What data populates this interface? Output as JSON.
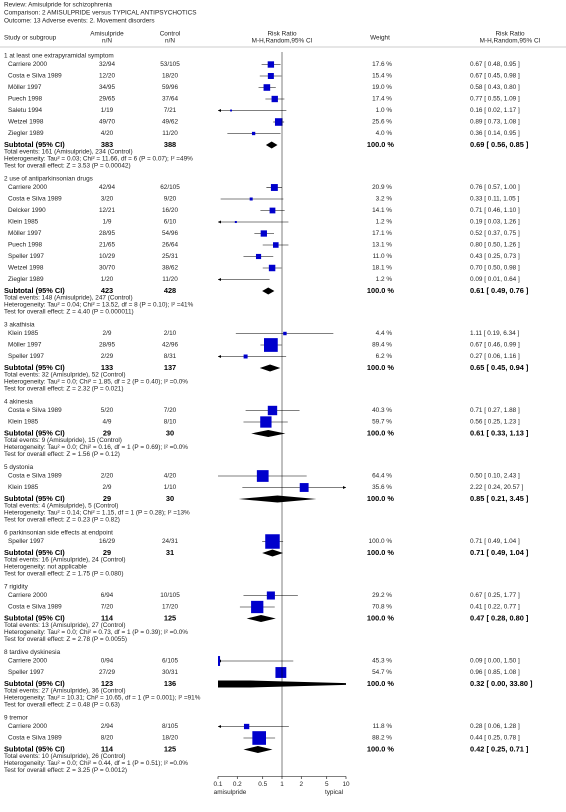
{
  "header": {
    "review": "Review:  Amisulpride for schizophrenia",
    "comparison": "Comparison:  2 AMISULPRIDE versus TYPICAL ANTIPSYCHOTICS",
    "outcome": "Outcome:  13 Adverse events: 2. Movement disorders"
  },
  "columns": {
    "study": "Study or subgroup",
    "group1": "Amisulpride",
    "group1_sub": "n/N",
    "group2": "Control",
    "group2_sub": "n/N",
    "plot": "Risk Ratio",
    "plot_sub": "M-H,Random,95% CI",
    "weight": "Weight",
    "ratio": "Risk Ratio",
    "ratio_sub": "M-H,Random,95% CI"
  },
  "chart_data": {
    "type": "forest",
    "xscale": "log",
    "xlim": [
      0.1,
      10
    ],
    "xticks": [
      0.1,
      0.2,
      0.5,
      1,
      2,
      5,
      10
    ],
    "x_label_left": "amisulpride",
    "x_label_right": "typical",
    "color": "#0000cc",
    "groups": [
      {
        "title": "1 at least one extrapyramidal symptom",
        "studies": [
          {
            "name": "Carriere 2000",
            "events1": "32/94",
            "events2": "53/105",
            "weight": 17.6,
            "weight_label": "17.6 %",
            "rr": 0.67,
            "lo": 0.48,
            "hi": 0.95,
            "rr_label": "0.67 [ 0.48, 0.95 ]"
          },
          {
            "name": "Costa e Silva 1989",
            "events1": "12/20",
            "events2": "18/20",
            "weight": 15.4,
            "weight_label": "15.4 %",
            "rr": 0.67,
            "lo": 0.45,
            "hi": 0.98,
            "rr_label": "0.67 [ 0.45, 0.98 ]"
          },
          {
            "name": "Möller 1997",
            "events1": "34/95",
            "events2": "59/96",
            "weight": 19.0,
            "weight_label": "19.0 %",
            "rr": 0.58,
            "lo": 0.43,
            "hi": 0.8,
            "rr_label": "0.58 [ 0.43, 0.80 ]"
          },
          {
            "name": "Puech 1998",
            "events1": "29/65",
            "events2": "37/64",
            "weight": 17.4,
            "weight_label": "17.4 %",
            "rr": 0.77,
            "lo": 0.55,
            "hi": 1.09,
            "rr_label": "0.77 [ 0.55, 1.09 ]"
          },
          {
            "name": "Saletu 1994",
            "events1": "1/19",
            "events2": "7/21",
            "weight": 1.0,
            "weight_label": "1.0 %",
            "rr": 0.16,
            "lo": 0.02,
            "hi": 1.17,
            "rr_label": "0.16 [ 0.02, 1.17 ]"
          },
          {
            "name": "Wetzel 1998",
            "events1": "49/70",
            "events2": "49/62",
            "weight": 25.6,
            "weight_label": "25.6 %",
            "rr": 0.89,
            "lo": 0.73,
            "hi": 1.08,
            "rr_label": "0.89 [ 0.73, 1.08 ]"
          },
          {
            "name": "Ziegler 1989",
            "events1": "4/20",
            "events2": "11/20",
            "weight": 4.0,
            "weight_label": "4.0 %",
            "rr": 0.36,
            "lo": 0.14,
            "hi": 0.95,
            "rr_label": "0.36 [ 0.14, 0.95 ]"
          }
        ],
        "subtotal": {
          "label": "Subtotal (95% CI)",
          "n1": 383,
          "n2": 388,
          "weight_label": "100.0 %",
          "rr": 0.69,
          "lo": 0.56,
          "hi": 0.85,
          "rr_label": "0.69 [ 0.56, 0.85 ]",
          "total_events": "Total events: 161 (Amisulpride), 234 (Control)",
          "heterogeneity": "Heterogeneity: Tau² = 0.03; Chi² = 11.66, df = 6 (P = 0.07); I² =49%",
          "overall_effect": "Test for overall effect: Z = 3.53 (P = 0.00042)"
        }
      },
      {
        "title": "2 use of antiparkinsonian drugs",
        "studies": [
          {
            "name": "Carriere 2000",
            "events1": "42/94",
            "events2": "62/105",
            "weight": 20.9,
            "weight_label": "20.9 %",
            "rr": 0.76,
            "lo": 0.57,
            "hi": 1.0,
            "rr_label": "0.76 [ 0.57, 1.00 ]"
          },
          {
            "name": "Costa e Silva 1989",
            "events1": "3/20",
            "events2": "9/20",
            "weight": 3.2,
            "weight_label": "3.2 %",
            "rr": 0.33,
            "lo": 0.11,
            "hi": 1.05,
            "rr_label": "0.33 [ 0.11, 1.05 ]"
          },
          {
            "name": "Delcker 1990",
            "events1": "12/21",
            "events2": "16/20",
            "weight": 14.1,
            "weight_label": "14.1 %",
            "rr": 0.71,
            "lo": 0.46,
            "hi": 1.1,
            "rr_label": "0.71 [ 0.46, 1.10 ]"
          },
          {
            "name": "Klein 1985",
            "events1": "1/9",
            "events2": "6/10",
            "weight": 1.2,
            "weight_label": "1.2 %",
            "rr": 0.19,
            "lo": 0.03,
            "hi": 1.26,
            "rr_label": "0.19 [ 0.03, 1.26 ]"
          },
          {
            "name": "Möller 1997",
            "events1": "28/95",
            "events2": "54/96",
            "weight": 17.1,
            "weight_label": "17.1 %",
            "rr": 0.52,
            "lo": 0.37,
            "hi": 0.75,
            "rr_label": "0.52 [ 0.37, 0.75 ]"
          },
          {
            "name": "Puech 1998",
            "events1": "21/65",
            "events2": "26/64",
            "weight": 13.1,
            "weight_label": "13.1 %",
            "rr": 0.8,
            "lo": 0.5,
            "hi": 1.26,
            "rr_label": "0.80 [ 0.50, 1.26 ]"
          },
          {
            "name": "Speller 1997",
            "events1": "10/29",
            "events2": "25/31",
            "weight": 11.0,
            "weight_label": "11.0 %",
            "rr": 0.43,
            "lo": 0.25,
            "hi": 0.73,
            "rr_label": "0.43 [ 0.25, 0.73 ]"
          },
          {
            "name": "Wetzel 1998",
            "events1": "30/70",
            "events2": "38/62",
            "weight": 18.1,
            "weight_label": "18.1 %",
            "rr": 0.7,
            "lo": 0.5,
            "hi": 0.98,
            "rr_label": "0.70 [ 0.50, 0.98 ]"
          },
          {
            "name": "Ziegler 1989",
            "events1": "1/20",
            "events2": "11/20",
            "weight": 1.2,
            "weight_label": "1.2 %",
            "rr": 0.09,
            "lo": 0.01,
            "hi": 0.64,
            "rr_label": "0.09 [ 0.01, 0.64 ]"
          }
        ],
        "subtotal": {
          "label": "Subtotal (95% CI)",
          "n1": 423,
          "n2": 428,
          "weight_label": "100.0 %",
          "rr": 0.61,
          "lo": 0.49,
          "hi": 0.76,
          "rr_label": "0.61 [ 0.49, 0.76 ]",
          "total_events": "Total events: 148 (Amisulpride), 247 (Control)",
          "heterogeneity": "Heterogeneity: Tau² = 0.04; Chi² = 13.52, df = 8 (P = 0.10); I² =41%",
          "overall_effect": "Test for overall effect: Z = 4.40 (P = 0.000011)"
        }
      },
      {
        "title": "3 akathisia",
        "studies": [
          {
            "name": "Klein 1985",
            "events1": "2/9",
            "events2": "2/10",
            "weight": 4.4,
            "weight_label": "4.4 %",
            "rr": 1.11,
            "lo": 0.19,
            "hi": 6.34,
            "rr_label": "1.11 [ 0.19, 6.34 ]"
          },
          {
            "name": "Möller 1997",
            "events1": "28/95",
            "events2": "42/96",
            "weight": 89.4,
            "weight_label": "89.4 %",
            "rr": 0.67,
            "lo": 0.46,
            "hi": 0.99,
            "rr_label": "0.67 [ 0.46, 0.99 ]"
          },
          {
            "name": "Speller 1997",
            "events1": "2/29",
            "events2": "8/31",
            "weight": 6.2,
            "weight_label": "6.2 %",
            "rr": 0.27,
            "lo": 0.06,
            "hi": 1.16,
            "rr_label": "0.27 [ 0.06, 1.16 ]"
          }
        ],
        "subtotal": {
          "label": "Subtotal (95% CI)",
          "n1": 133,
          "n2": 137,
          "weight_label": "100.0 %",
          "rr": 0.65,
          "lo": 0.45,
          "hi": 0.94,
          "rr_label": "0.65 [ 0.45, 0.94 ]",
          "total_events": "Total events: 32 (Amisulpride), 52 (Control)",
          "heterogeneity": "Heterogeneity: Tau² = 0.0; Chi² = 1.85, df = 2 (P = 0.40); I² =0.0%",
          "overall_effect": "Test for overall effect: Z = 2.32 (P = 0.021)"
        }
      },
      {
        "title": "4 akinesia",
        "studies": [
          {
            "name": "Costa e Silva 1989",
            "events1": "5/20",
            "events2": "7/20",
            "weight": 40.3,
            "weight_label": "40.3 %",
            "rr": 0.71,
            "lo": 0.27,
            "hi": 1.88,
            "rr_label": "0.71 [ 0.27, 1.88 ]"
          },
          {
            "name": "Klein 1985",
            "events1": "4/9",
            "events2": "8/10",
            "weight": 59.7,
            "weight_label": "59.7 %",
            "rr": 0.56,
            "lo": 0.25,
            "hi": 1.23,
            "rr_label": "0.56 [ 0.25, 1.23 ]"
          }
        ],
        "subtotal": {
          "label": "Subtotal (95% CI)",
          "n1": 29,
          "n2": 30,
          "weight_label": "100.0 %",
          "rr": 0.61,
          "lo": 0.33,
          "hi": 1.13,
          "rr_label": "0.61 [ 0.33, 1.13 ]",
          "total_events": "Total events: 9 (Amisulpride), 15 (Control)",
          "heterogeneity": "Heterogeneity: Tau² = 0.0; Chi² = 0.16, df = 1 (P = 0.69); I² =0.0%",
          "overall_effect": "Test for overall effect: Z = 1.56 (P = 0.12)"
        }
      },
      {
        "title": "5 dystonia",
        "studies": [
          {
            "name": "Costa e Silva 1989",
            "events1": "2/20",
            "events2": "4/20",
            "weight": 64.4,
            "weight_label": "64.4 %",
            "rr": 0.5,
            "lo": 0.1,
            "hi": 2.43,
            "rr_label": "0.50 [ 0.10, 2.43 ]"
          },
          {
            "name": "Klein 1985",
            "events1": "2/9",
            "events2": "1/10",
            "weight": 35.6,
            "weight_label": "35.6 %",
            "rr": 2.22,
            "lo": 0.24,
            "hi": 20.57,
            "rr_label": "2.22 [ 0.24, 20.57 ]"
          }
        ],
        "subtotal": {
          "label": "Subtotal (95% CI)",
          "n1": 29,
          "n2": 30,
          "weight_label": "100.0 %",
          "rr": 0.85,
          "lo": 0.21,
          "hi": 3.45,
          "rr_label": "0.85 [ 0.21, 3.45 ]",
          "total_events": "Total events: 4 (Amisulpride), 5 (Control)",
          "heterogeneity": "Heterogeneity: Tau² = 0.14; Chi² = 1.15, df = 1 (P = 0.28); I² =13%",
          "overall_effect": "Test for overall effect: Z = 0.23 (P = 0.82)"
        }
      },
      {
        "title": "6 parkinsonian side effects at endpoint",
        "studies": [
          {
            "name": "Speller 1997",
            "events1": "16/29",
            "events2": "24/31",
            "weight": 100.0,
            "weight_label": "100.0 %",
            "rr": 0.71,
            "lo": 0.49,
            "hi": 1.04,
            "rr_label": "0.71 [ 0.49, 1.04 ]"
          }
        ],
        "subtotal": {
          "label": "Subtotal (95% CI)",
          "n1": 29,
          "n2": 31,
          "weight_label": "100.0 %",
          "rr": 0.71,
          "lo": 0.49,
          "hi": 1.04,
          "rr_label": "0.71 [ 0.49, 1.04 ]",
          "total_events": "Total events: 16 (Amisulpride), 24 (Control)",
          "heterogeneity": "Heterogeneity: not applicable",
          "overall_effect": "Test for overall effect: Z = 1.75 (P = 0.080)"
        }
      },
      {
        "title": "7 rigidity",
        "studies": [
          {
            "name": "Carriere 2000",
            "events1": "6/94",
            "events2": "10/105",
            "weight": 29.2,
            "weight_label": "29.2 %",
            "rr": 0.67,
            "lo": 0.25,
            "hi": 1.77,
            "rr_label": "0.67 [ 0.25, 1.77 ]"
          },
          {
            "name": "Costa e Silva 1989",
            "events1": "7/20",
            "events2": "17/20",
            "weight": 70.8,
            "weight_label": "70.8 %",
            "rr": 0.41,
            "lo": 0.22,
            "hi": 0.77,
            "rr_label": "0.41 [ 0.22, 0.77 ]"
          }
        ],
        "subtotal": {
          "label": "Subtotal (95% CI)",
          "n1": 114,
          "n2": 125,
          "weight_label": "100.0 %",
          "rr": 0.47,
          "lo": 0.28,
          "hi": 0.8,
          "rr_label": "0.47 [ 0.28, 0.80 ]",
          "total_events": "Total events: 13 (Amisulpride), 27 (Control)",
          "heterogeneity": "Heterogeneity: Tau² = 0.0; Chi² = 0.73, df = 1 (P = 0.39); I² =0.0%",
          "overall_effect": "Test for overall effect: Z = 2.78 (P = 0.0055)"
        }
      },
      {
        "title": "8 tardive dyskinesia",
        "studies": [
          {
            "name": "Carriere 2000",
            "events1": "0/94",
            "events2": "6/105",
            "weight": 45.3,
            "weight_label": "45.3 %",
            "rr": 0.09,
            "lo": 0.0,
            "hi": 1.5,
            "rr_label": "0.09 [ 0.00, 1.50 ]"
          },
          {
            "name": "Speller 1997",
            "events1": "27/29",
            "events2": "30/31",
            "weight": 54.7,
            "weight_label": "54.7 %",
            "rr": 0.96,
            "lo": 0.85,
            "hi": 1.08,
            "rr_label": "0.96 [ 0.85, 1.08 ]"
          }
        ],
        "subtotal": {
          "label": "Subtotal (95% CI)",
          "n1": 123,
          "n2": 136,
          "weight_label": "100.0 %",
          "rr": 0.32,
          "lo": 0.0,
          "hi": 33.8,
          "rr_label": "0.32 [ 0.00, 33.80 ]",
          "total_events": "Total events: 27 (Amisulpride), 36 (Control)",
          "heterogeneity": "Heterogeneity: Tau² = 10.31; Chi² = 10.65, df = 1 (P = 0.001); I² =91%",
          "overall_effect": "Test for overall effect: Z = 0.48 (P = 0.63)"
        }
      },
      {
        "title": "9 tremor",
        "studies": [
          {
            "name": "Carriere 2000",
            "events1": "2/94",
            "events2": "8/105",
            "weight": 11.8,
            "weight_label": "11.8 %",
            "rr": 0.28,
            "lo": 0.06,
            "hi": 1.28,
            "rr_label": "0.28 [ 0.06, 1.28 ]"
          },
          {
            "name": "Costa e Silva 1989",
            "events1": "8/20",
            "events2": "18/20",
            "weight": 88.2,
            "weight_label": "88.2 %",
            "rr": 0.44,
            "lo": 0.25,
            "hi": 0.78,
            "rr_label": "0.44 [ 0.25, 0.78 ]"
          }
        ],
        "subtotal": {
          "label": "Subtotal (95% CI)",
          "n1": 114,
          "n2": 125,
          "weight_label": "100.0 %",
          "rr": 0.42,
          "lo": 0.25,
          "hi": 0.71,
          "rr_label": "0.42 [ 0.25, 0.71 ]",
          "total_events": "Total events: 10 (Amisulpride), 26 (Control)",
          "heterogeneity": "Heterogeneity: Tau² = 0.0; Chi² = 0.44, df = 1 (P = 0.51); I² =0.0%",
          "overall_effect": "Test for overall effect: Z = 3.25 (P = 0.0012)"
        }
      }
    ]
  }
}
